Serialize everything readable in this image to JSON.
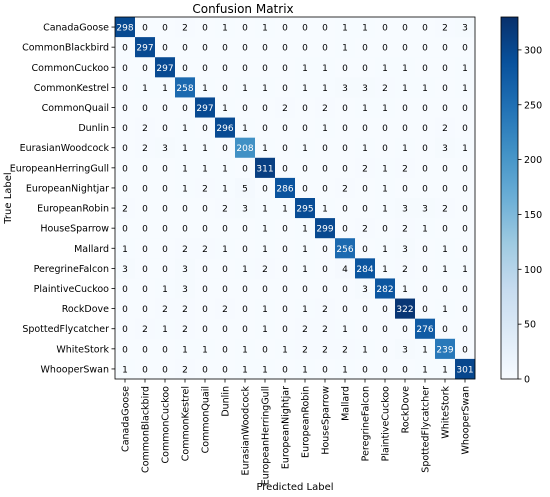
{
  "chart_data": {
    "type": "heatmap",
    "title": "Confusion Matrix",
    "xlabel": "Predicted Label",
    "ylabel": "True Label",
    "labels": [
      "CanadaGoose",
      "CommonBlackbird",
      "CommonCuckoo",
      "CommonKestrel",
      "CommonQuail",
      "Dunlin",
      "EurasianWoodcock",
      "EuropeanHerringGull",
      "EuropeanNightjar",
      "EuropeanRobin",
      "HouseSparrow",
      "Mallard",
      "PeregrineFalcon",
      "PlaintiveCuckoo",
      "RockDove",
      "SpottedFlycatcher",
      "WhiteStork",
      "WhooperSwan"
    ],
    "matrix": [
      [
        298,
        0,
        0,
        2,
        0,
        1,
        0,
        1,
        0,
        0,
        0,
        1,
        1,
        0,
        0,
        0,
        2,
        3
      ],
      [
        0,
        297,
        0,
        0,
        0,
        0,
        0,
        0,
        0,
        0,
        0,
        1,
        0,
        0,
        0,
        0,
        0,
        0
      ],
      [
        0,
        0,
        297,
        0,
        0,
        0,
        0,
        0,
        0,
        1,
        1,
        0,
        0,
        1,
        1,
        0,
        0,
        1
      ],
      [
        0,
        1,
        1,
        258,
        1,
        0,
        1,
        1,
        0,
        1,
        1,
        3,
        3,
        2,
        1,
        1,
        0,
        1
      ],
      [
        0,
        0,
        0,
        0,
        297,
        1,
        0,
        0,
        2,
        0,
        2,
        0,
        1,
        1,
        0,
        0,
        0,
        0
      ],
      [
        0,
        2,
        0,
        1,
        0,
        296,
        1,
        0,
        0,
        0,
        1,
        0,
        0,
        0,
        0,
        0,
        2,
        0
      ],
      [
        0,
        2,
        3,
        1,
        1,
        0,
        208,
        1,
        0,
        1,
        0,
        0,
        1,
        0,
        1,
        0,
        3,
        1
      ],
      [
        0,
        0,
        0,
        1,
        1,
        1,
        0,
        311,
        0,
        0,
        0,
        0,
        2,
        1,
        2,
        0,
        0,
        0
      ],
      [
        0,
        0,
        0,
        1,
        2,
        1,
        5,
        0,
        286,
        0,
        0,
        2,
        0,
        1,
        0,
        0,
        0,
        0
      ],
      [
        2,
        0,
        0,
        0,
        0,
        2,
        3,
        1,
        1,
        295,
        1,
        0,
        0,
        1,
        3,
        3,
        2,
        0
      ],
      [
        0,
        0,
        0,
        0,
        0,
        0,
        0,
        1,
        0,
        1,
        299,
        0,
        2,
        0,
        2,
        1,
        0,
        0
      ],
      [
        1,
        0,
        0,
        2,
        2,
        1,
        0,
        1,
        0,
        1,
        0,
        256,
        0,
        1,
        3,
        0,
        1,
        0
      ],
      [
        3,
        0,
        0,
        3,
        0,
        0,
        1,
        2,
        0,
        1,
        0,
        4,
        284,
        1,
        2,
        0,
        1,
        1
      ],
      [
        0,
        0,
        1,
        3,
        0,
        0,
        0,
        0,
        0,
        0,
        0,
        0,
        3,
        282,
        1,
        0,
        0,
        0
      ],
      [
        0,
        0,
        2,
        2,
        0,
        2,
        0,
        1,
        0,
        1,
        2,
        0,
        0,
        0,
        322,
        0,
        1,
        0
      ],
      [
        0,
        2,
        1,
        2,
        0,
        0,
        0,
        1,
        0,
        2,
        2,
        1,
        0,
        0,
        0,
        276,
        0,
        0
      ],
      [
        0,
        0,
        0,
        1,
        1,
        0,
        1,
        0,
        1,
        2,
        2,
        2,
        1,
        0,
        3,
        1,
        239,
        0
      ],
      [
        1,
        0,
        0,
        2,
        0,
        0,
        1,
        1,
        0,
        1,
        0,
        1,
        0,
        0,
        0,
        1,
        1,
        301
      ]
    ],
    "color_range": [
      0,
      330
    ],
    "colorbar_ticks": [
      0,
      50,
      100,
      150,
      200,
      250,
      300
    ],
    "colormap": "Blues",
    "text_color_light": "#ffffff",
    "text_color_dark": "#000000"
  }
}
